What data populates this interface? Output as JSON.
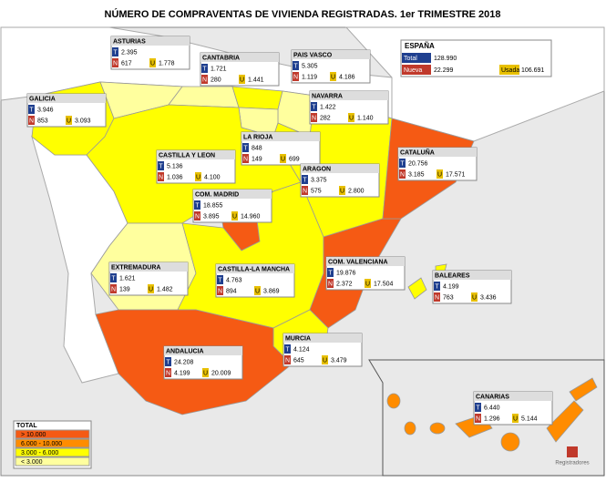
{
  "title": "NÚMERO DE COMPRAVENTAS DE VIVIENDA REGISTRADAS. 1er TRIMESTRE 2018",
  "spain": {
    "name": "ESPAÑA",
    "total_label": "Total",
    "total": "128.990",
    "nueva_label": "Nueva",
    "nueva": "22.299",
    "usada_label": "Usada",
    "usada": "106.691"
  },
  "row_labels": {
    "t": "T",
    "n": "N",
    "u": "U"
  },
  "regions": [
    {
      "name": "ASTURIAS",
      "color": "#ffff9e",
      "t": "2.395",
      "n": "617",
      "u": "1.778"
    },
    {
      "name": "CANTABRIA",
      "color": "#ffff9e",
      "t": "1.721",
      "n": "280",
      "u": "1.441"
    },
    {
      "name": "PAIS VASCO",
      "color": "#ffff00",
      "t": "5.305",
      "n": "1.119",
      "u": "4.186"
    },
    {
      "name": "NAVARRA",
      "color": "#ffff9e",
      "t": "1.422",
      "n": "282",
      "u": "1.140"
    },
    {
      "name": "GALICIA",
      "color": "#ffff00",
      "t": "3.946",
      "n": "853",
      "u": "3.093"
    },
    {
      "name": "LA RIOJA",
      "color": "#ffff9e",
      "t": "848",
      "n": "149",
      "u": "699"
    },
    {
      "name": "CASTILLA Y LEON",
      "color": "#ffff00",
      "t": "5.136",
      "n": "1.036",
      "u": "4.100"
    },
    {
      "name": "ARAGON",
      "color": "#ffff00",
      "t": "3.375",
      "n": "575",
      "u": "2.800"
    },
    {
      "name": "COM. MADRID",
      "color": "#f55a14",
      "t": "18.855",
      "n": "3.895",
      "u": "14.960"
    },
    {
      "name": "EXTREMADURA",
      "color": "#ffff9e",
      "t": "1.621",
      "n": "139",
      "u": "1.482"
    },
    {
      "name": "CASTILLA-LA MANCHA",
      "color": "#ffff00",
      "t": "4.763",
      "n": "894",
      "u": "3.869"
    },
    {
      "name": "COM. VALENCIANA",
      "color": "#f55a14",
      "t": "19.876",
      "n": "2.372",
      "u": "17.504"
    },
    {
      "name": "BALEARES",
      "color": "#ffff00",
      "t": "4.199",
      "n": "763",
      "u": "3.436"
    },
    {
      "name": "MURCIA",
      "color": "#ffff00",
      "t": "4.124",
      "n": "645",
      "u": "3.479"
    },
    {
      "name": "ANDALUCIA",
      "color": "#f55a14",
      "t": "24.208",
      "n": "4.199",
      "u": "20.009"
    },
    {
      "name": "CATALUÑA",
      "color": "#f55a14",
      "t": "20.756",
      "n": "3.185",
      "u": "17.571"
    },
    {
      "name": "CANARIAS",
      "color": "#ff8c00",
      "t": "6.440",
      "n": "1.296",
      "u": "5.144"
    }
  ],
  "legend": {
    "title": "TOTAL",
    "items": [
      {
        "label": "> 10.000",
        "color": "#f55a14"
      },
      {
        "label": "6.000 - 10.000",
        "color": "#ff8c00"
      },
      {
        "label": "3.000 - 6.000",
        "color": "#ffff00"
      },
      {
        "label": "< 3.000",
        "color": "#ffff9e"
      }
    ]
  },
  "logo": "Registradores"
}
